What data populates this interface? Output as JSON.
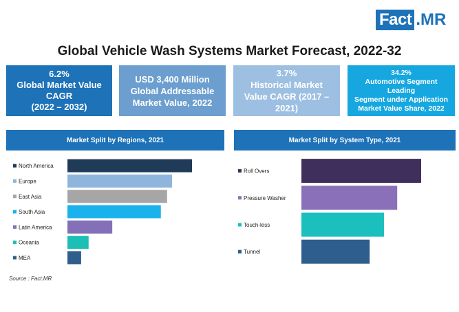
{
  "brand": {
    "logo_main": "Fact",
    "logo_suffix": ".MR"
  },
  "title": "Global Vehicle Wash Systems Market Forecast, 2022-32",
  "kpis": [
    {
      "line1": "6.2%",
      "line2": "Global Market Value",
      "line3": "CAGR",
      "line4": "(2022 – 2032)"
    },
    {
      "line1": "USD 3,400 Million",
      "line2": "Global Addressable",
      "line3": "Market Value, 2022"
    },
    {
      "line1": "3.7%",
      "line2": "Historical Market",
      "line3": "Value CAGR (2017 –",
      "line4": "2021)"
    },
    {
      "line1": "34.2%",
      "line2": "Automotive Segment Leading",
      "line3": "Segment under Application",
      "line4": "Market Value Share, 2022"
    }
  ],
  "source": "Source : Fact.MR",
  "chart_data": [
    {
      "type": "bar",
      "orientation": "horizontal",
      "title": "Market Split by Regions, 2021",
      "categories": [
        "North America",
        "Europe",
        "East Asia",
        "South Asia",
        "Latin America",
        "Oceania",
        "MEA"
      ],
      "values": [
        100,
        84,
        80,
        75,
        36,
        17,
        11
      ],
      "colors": [
        "#1f3b57",
        "#8eb6dd",
        "#a6a6a6",
        "#19b2ec",
        "#8470b8",
        "#1cbfb6",
        "#2e5f8c"
      ],
      "legend_position": "left",
      "grid": false,
      "value_axis_visible": false
    },
    {
      "type": "bar",
      "orientation": "horizontal",
      "title": "Market Split by System Type, 2021",
      "categories": [
        "Roll Overs",
        "Pressure Washer",
        "Touch-less",
        "Tunnel"
      ],
      "values": [
        100,
        80,
        69,
        57
      ],
      "colors": [
        "#3f2f5c",
        "#8a70b8",
        "#1bbfbe",
        "#2e5f8c"
      ],
      "legend_position": "left",
      "grid": false,
      "value_axis_visible": false
    }
  ]
}
